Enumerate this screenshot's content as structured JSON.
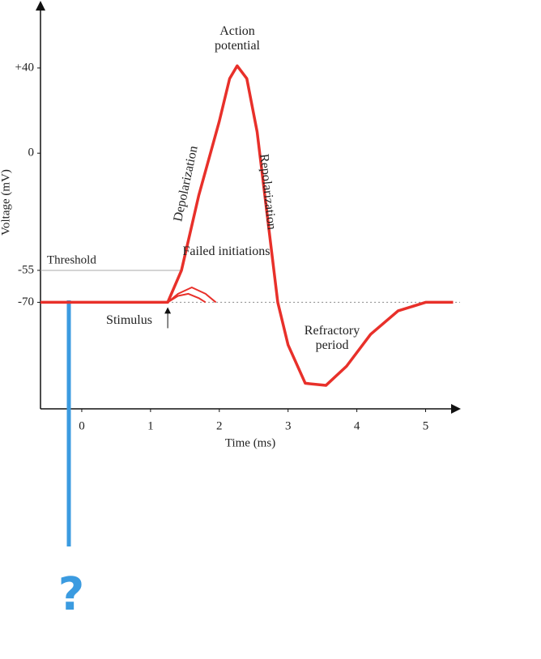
{
  "chart_data": {
    "type": "line",
    "ylabel": "Voltage (mV)",
    "xlabel": "Time (ms)",
    "xlim": [
      -0.6,
      5.5
    ],
    "xticks": [
      0,
      1,
      2,
      3,
      4,
      5
    ],
    "ylim": [
      -120,
      70
    ],
    "yticks": [
      {
        "value": 40,
        "label": "+40"
      },
      0,
      -55,
      -70
    ],
    "grid": false,
    "threshold": -55,
    "threshold_label": "Threshold",
    "rest": -70,
    "series": [
      {
        "color": "#e8302a",
        "x": [
          -0.6,
          1.25,
          1.45,
          1.7,
          2.0,
          2.15,
          2.26,
          2.4,
          2.55,
          2.7,
          2.85,
          3.0,
          3.25,
          3.55,
          3.85,
          4.2,
          4.6,
          5.0,
          5.4
        ],
        "values": [
          -70,
          -70,
          -55,
          -20,
          15,
          35,
          41,
          35,
          10,
          -30,
          -70,
          -90,
          -108,
          -109,
          -100,
          -85,
          -74,
          -70,
          -70
        ]
      },
      {
        "color": "#e8302a",
        "x": [
          1.25,
          1.4,
          1.6,
          1.8,
          1.95
        ],
        "values": [
          -70,
          -66,
          -63,
          -66,
          -70
        ]
      },
      {
        "color": "#e8302a",
        "x": [
          1.25,
          1.4,
          1.55,
          1.7,
          1.8
        ],
        "values": [
          -70,
          -67,
          -66,
          -68,
          -70
        ]
      }
    ],
    "annotations": [
      "Action potential",
      "Depolarization",
      "Repolarization",
      "Failed initiations",
      "Stimulus",
      "Refractory period"
    ],
    "question": "?"
  }
}
